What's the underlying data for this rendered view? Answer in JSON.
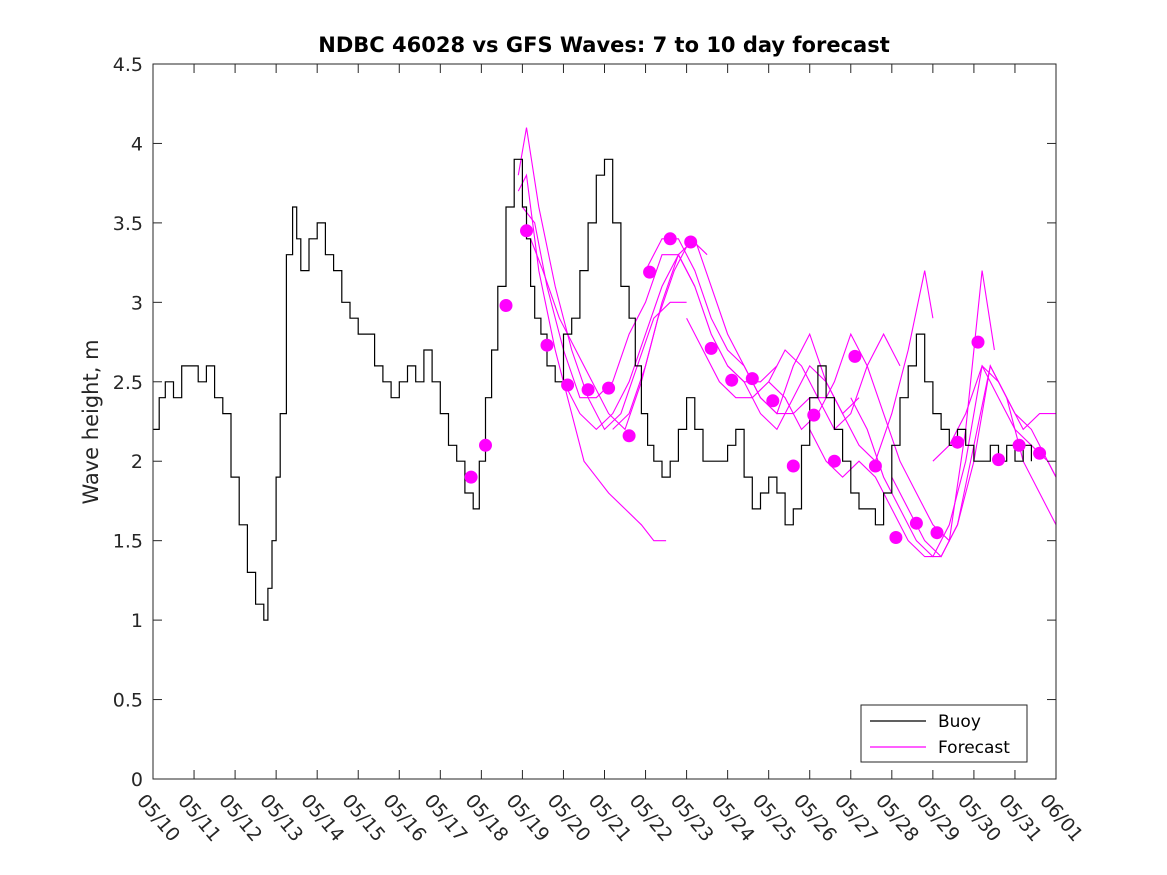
{
  "chart_data": {
    "type": "line",
    "title": "NDBC 46028 vs GFS Waves: 7 to 10 day forecast",
    "xlabel": "",
    "ylabel": "Wave height, m",
    "xlim": [
      0,
      22
    ],
    "ylim": [
      0,
      4.5
    ],
    "xticks": [
      "05/10",
      "05/11",
      "05/12",
      "05/13",
      "05/14",
      "05/15",
      "05/16",
      "05/17",
      "05/18",
      "05/19",
      "05/20",
      "05/21",
      "05/22",
      "05/23",
      "05/24",
      "05/25",
      "05/26",
      "05/27",
      "05/28",
      "05/29",
      "05/30",
      "05/31",
      "06/01"
    ],
    "yticks": [
      "0",
      "0.5",
      "1",
      "1.5",
      "2",
      "2.5",
      "3",
      "3.5",
      "4",
      "4.5"
    ],
    "ytick_values": [
      0,
      0.5,
      1,
      1.5,
      2,
      2.5,
      3,
      3.5,
      4,
      4.5
    ],
    "grid": false,
    "legend": {
      "position": "bottom-right",
      "entries": [
        "Buoy",
        "Forecast"
      ]
    },
    "colors": {
      "buoy": "#000000",
      "forecast": "#ff00ff"
    },
    "series": [
      {
        "name": "Buoy",
        "x": [
          0,
          0.15,
          0.3,
          0.5,
          0.7,
          0.9,
          1.1,
          1.3,
          1.5,
          1.7,
          1.9,
          2.1,
          2.3,
          2.5,
          2.7,
          2.8,
          2.9,
          3.0,
          3.1,
          3.25,
          3.4,
          3.5,
          3.6,
          3.8,
          4.0,
          4.2,
          4.4,
          4.6,
          4.8,
          5.0,
          5.2,
          5.4,
          5.6,
          5.8,
          6.0,
          6.2,
          6.4,
          6.6,
          6.8,
          7.0,
          7.2,
          7.4,
          7.6,
          7.8,
          7.95,
          8.1,
          8.25,
          8.4,
          8.6,
          8.8,
          9.0,
          9.1,
          9.2,
          9.3,
          9.45,
          9.6,
          9.8,
          10.0,
          10.2,
          10.4,
          10.6,
          10.8,
          11.0,
          11.2,
          11.4,
          11.6,
          11.75,
          11.9,
          12.05,
          12.2,
          12.4,
          12.6,
          12.8,
          13.0,
          13.2,
          13.4,
          13.6,
          13.8,
          14.0,
          14.2,
          14.4,
          14.6,
          14.8,
          15.0,
          15.2,
          15.4,
          15.6,
          15.8,
          16.0,
          16.2,
          16.4,
          16.6,
          16.8,
          17.0,
          17.2,
          17.4,
          17.6,
          17.8,
          18.0,
          18.2,
          18.4,
          18.6,
          18.8,
          19.0,
          19.2,
          19.4,
          19.6,
          19.8,
          20.0,
          20.2,
          20.4,
          20.6,
          20.8,
          21.0,
          21.2,
          21.4
        ],
        "values": [
          2.2,
          2.4,
          2.5,
          2.4,
          2.6,
          2.6,
          2.5,
          2.6,
          2.4,
          2.3,
          1.9,
          1.6,
          1.3,
          1.1,
          1.0,
          1.2,
          1.5,
          1.9,
          2.3,
          3.3,
          3.6,
          3.4,
          3.2,
          3.4,
          3.5,
          3.3,
          3.2,
          3.0,
          2.9,
          2.8,
          2.8,
          2.6,
          2.5,
          2.4,
          2.5,
          2.6,
          2.5,
          2.7,
          2.5,
          2.3,
          2.1,
          2.0,
          1.8,
          1.7,
          2.0,
          2.4,
          2.7,
          3.1,
          3.6,
          3.9,
          3.6,
          3.4,
          3.1,
          2.9,
          2.8,
          2.6,
          2.5,
          2.8,
          2.9,
          3.2,
          3.5,
          3.8,
          3.9,
          3.5,
          3.1,
          2.9,
          2.6,
          2.3,
          2.1,
          2.0,
          1.9,
          2.0,
          2.2,
          2.4,
          2.2,
          2.0,
          2.0,
          2.0,
          2.1,
          2.2,
          1.9,
          1.7,
          1.8,
          1.9,
          1.8,
          1.6,
          1.7,
          2.1,
          2.4,
          2.6,
          2.4,
          2.2,
          2.0,
          1.8,
          1.7,
          1.7,
          1.6,
          1.8,
          2.1,
          2.4,
          2.6,
          2.8,
          2.5,
          2.3,
          2.2,
          2.1,
          2.2,
          2.1,
          2.0,
          2.0,
          2.1,
          2.0,
          2.1,
          2.0,
          2.1,
          2.0
        ]
      },
      {
        "name": "Forecast",
        "runs": [
          {
            "x": [
              8.9,
              9.1,
              9.4,
              9.8,
              10.2,
              10.5,
              10.8,
              11.1,
              11.5,
              11.9,
              12.2,
              12.5
            ],
            "values": [
              3.7,
              3.8,
              3.2,
              2.7,
              2.3,
              2.0,
              1.9,
              1.8,
              1.7,
              1.6,
              1.5,
              1.5
            ]
          },
          {
            "x": [
              8.9,
              9.1,
              9.4,
              9.8,
              10.2,
              10.6,
              11.0,
              11.4,
              11.8,
              12.2,
              12.6,
              13.0
            ],
            "values": [
              3.8,
              4.1,
              3.6,
              3.1,
              2.7,
              2.4,
              2.2,
              2.3,
              2.6,
              2.9,
              3.0,
              3.0
            ]
          },
          {
            "x": [
              9.0,
              9.3,
              9.6,
              10.0,
              10.4,
              10.8,
              11.2,
              11.6,
              12.0,
              12.4,
              12.8,
              13.2
            ],
            "values": [
              3.6,
              3.5,
              3.1,
              2.7,
              2.4,
              2.4,
              2.5,
              2.8,
              3.0,
              3.3,
              3.3,
              3.1
            ]
          },
          {
            "x": [
              9.2,
              9.5,
              9.9,
              10.3,
              10.7,
              11.1,
              11.5,
              11.9,
              12.3,
              12.7,
              13.1,
              13.5
            ],
            "values": [
              3.4,
              3.2,
              2.9,
              2.7,
              2.5,
              2.3,
              2.2,
              2.5,
              2.9,
              3.2,
              3.4,
              3.3
            ]
          },
          {
            "x": [
              10.0,
              10.4,
              10.8,
              11.2,
              11.6,
              12.0,
              12.4,
              12.8,
              13.2,
              13.6,
              14.0,
              14.4,
              14.8,
              15.2
            ],
            "values": [
              2.5,
              2.3,
              2.2,
              2.3,
              2.5,
              2.8,
              3.1,
              3.3,
              3.1,
              2.8,
              2.6,
              2.5,
              2.5,
              2.6
            ]
          },
          {
            "x": [
              11.2,
              11.6,
              12.0,
              12.4,
              12.8,
              13.2,
              13.6,
              14.0,
              14.4,
              14.8,
              15.2,
              15.6,
              16.0,
              16.4
            ],
            "values": [
              2.2,
              2.3,
              2.6,
              3.0,
              3.3,
              3.4,
              3.1,
              2.8,
              2.6,
              2.4,
              2.3,
              2.3,
              2.4,
              2.4
            ]
          },
          {
            "x": [
              12.0,
              12.4,
              12.8,
              13.2,
              13.6,
              14.0,
              14.4,
              14.8,
              15.2,
              15.6,
              16.0,
              16.4,
              16.8,
              17.2
            ],
            "values": [
              3.2,
              3.4,
              3.4,
              3.2,
              2.9,
              2.7,
              2.6,
              2.4,
              2.3,
              2.6,
              2.8,
              2.5,
              2.3,
              2.4
            ]
          },
          {
            "x": [
              13.0,
              13.4,
              13.8,
              14.2,
              14.6,
              15.0,
              15.4,
              15.8,
              16.2,
              16.6,
              17.0,
              17.4,
              17.8,
              18.2
            ],
            "values": [
              2.9,
              2.7,
              2.5,
              2.4,
              2.4,
              2.5,
              2.7,
              2.6,
              2.4,
              2.2,
              2.3,
              2.6,
              2.8,
              2.6
            ]
          },
          {
            "x": [
              14.0,
              14.4,
              14.8,
              15.2,
              15.6,
              16.0,
              16.4,
              16.8,
              17.2,
              17.6,
              18.0,
              18.4,
              18.8,
              19.0
            ],
            "values": [
              2.6,
              2.5,
              2.3,
              2.2,
              2.4,
              2.6,
              2.5,
              2.3,
              2.1,
              2.0,
              2.3,
              2.7,
              3.2,
              2.9
            ]
          },
          {
            "x": [
              15.0,
              15.4,
              15.8,
              16.2,
              16.6,
              17.0,
              17.4,
              17.8,
              18.2,
              18.6,
              19.0,
              19.4,
              19.8,
              20.2,
              20.5
            ],
            "values": [
              2.5,
              2.4,
              2.2,
              2.3,
              2.5,
              2.8,
              2.6,
              2.3,
              2.0,
              1.8,
              1.6,
              1.5,
              2.2,
              3.2,
              2.7
            ]
          },
          {
            "x": [
              16.0,
              16.4,
              16.8,
              17.2,
              17.6,
              18.0,
              18.4,
              18.8,
              19.2,
              19.6,
              20.0,
              20.4,
              20.8,
              21.2,
              21.6,
              22.0
            ],
            "values": [
              2.2,
              2.0,
              1.9,
              2.0,
              1.9,
              1.7,
              1.5,
              1.4,
              1.4,
              1.6,
              2.0,
              2.6,
              2.4,
              2.2,
              2.3,
              2.3
            ]
          },
          {
            "x": [
              17.0,
              17.4,
              17.8,
              18.2,
              18.6,
              19.0,
              19.4,
              19.8,
              20.2,
              20.6,
              21.0,
              21.4,
              21.8,
              22.0
            ],
            "values": [
              2.4,
              2.2,
              1.9,
              1.7,
              1.5,
              1.4,
              1.6,
              2.0,
              2.6,
              2.5,
              2.3,
              2.2,
              2.0,
              1.9
            ]
          },
          {
            "x": [
              18.0,
              18.4,
              18.8,
              19.2,
              19.6,
              20.0,
              20.4,
              20.8,
              21.2,
              21.6,
              22.0
            ],
            "values": [
              1.9,
              1.7,
              1.5,
              1.4,
              1.6,
              2.1,
              2.6,
              2.4,
              2.0,
              1.8,
              1.6
            ]
          },
          {
            "x": [
              19.0,
              19.4,
              19.8,
              20.2,
              20.6,
              21.0,
              21.4,
              21.8,
              22.0
            ],
            "values": [
              2.0,
              2.1,
              2.3,
              2.6,
              2.4,
              2.2,
              2.1,
              2.0,
              1.9
            ]
          }
        ],
        "markers": {
          "x": [
            7.75,
            8.1,
            8.6,
            9.1,
            9.6,
            10.1,
            10.6,
            11.1,
            11.6,
            12.1,
            12.6,
            13.1,
            13.6,
            14.1,
            14.6,
            15.1,
            15.6,
            16.1,
            16.6,
            17.1,
            17.6,
            18.1,
            18.6,
            19.1,
            19.6,
            20.1,
            20.6,
            21.1,
            21.6
          ],
          "values": [
            1.9,
            2.1,
            2.98,
            3.45,
            2.73,
            2.48,
            2.45,
            2.46,
            2.16,
            3.19,
            3.4,
            3.38,
            2.71,
            2.51,
            2.52,
            2.38,
            1.97,
            2.29,
            2.0,
            2.66,
            1.97,
            1.52,
            1.61,
            1.55,
            2.12,
            2.75,
            2.01,
            2.1,
            2.05
          ]
        }
      }
    ]
  }
}
